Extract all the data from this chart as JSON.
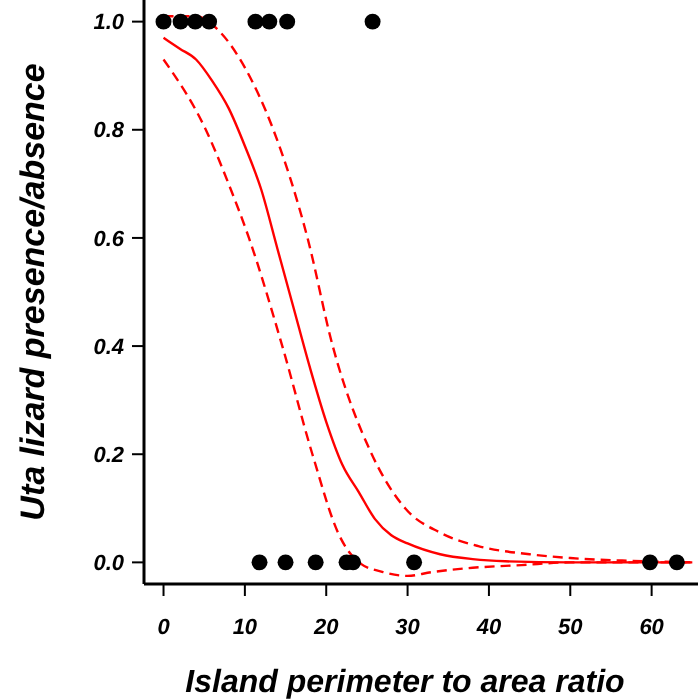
{
  "chart_data": {
    "type": "scatter",
    "xlabel": "Island perimeter to area ratio",
    "ylabel": "Uta lizard presence/absence",
    "xlim": [
      -2.4,
      65.7
    ],
    "ylim": [
      -0.04,
      1.04
    ],
    "xticks": [
      0,
      10,
      20,
      30,
      40,
      50,
      60
    ],
    "yticks": [
      {
        "value": 0,
        "label": "0.0"
      },
      {
        "value": 0.2,
        "label": "0.2"
      },
      {
        "value": 0.4,
        "label": "0.4"
      },
      {
        "value": 0.6,
        "label": "0.6"
      },
      {
        "value": 0.8,
        "label": "0.8"
      },
      {
        "value": 1,
        "label": "1.0"
      }
    ],
    "series": [
      {
        "type": "line",
        "color": "#ff0000",
        "line_style": "dashed",
        "x": [
          0,
          4,
          7,
          10,
          13.5,
          17.7,
          20.8,
          25.6,
          29.7,
          34,
          38.7,
          45,
          50,
          57,
          65
        ],
        "values": [
          1.01,
          1.01,
          0.98,
          0.915,
          0.8,
          0.6,
          0.4,
          0.2,
          0.1,
          0.055,
          0.03,
          0.015,
          0.008,
          0.003,
          0
        ]
      },
      {
        "type": "line",
        "color": "#ff0000",
        "line_style": "dashed",
        "x": [
          0,
          5.2,
          8,
          10.5,
          14.6,
          18.3,
          21.6,
          24,
          27,
          30,
          33,
          38,
          44,
          50,
          65
        ],
        "values": [
          0.93,
          0.8,
          0.7,
          0.6,
          0.4,
          0.2,
          0.05,
          0,
          -0.018,
          -0.025,
          -0.018,
          -0.01,
          -0.005,
          0,
          0
        ]
      },
      {
        "type": "line",
        "color": "#ff0000",
        "line_style": "solid",
        "x": [
          0,
          2,
          4,
          6,
          8,
          10,
          12,
          14,
          16,
          18,
          20,
          22,
          24,
          26,
          28,
          30,
          34,
          38,
          42,
          50,
          65
        ],
        "values": [
          0.97,
          0.95,
          0.93,
          0.89,
          0.84,
          0.77,
          0.69,
          0.58,
          0.47,
          0.36,
          0.26,
          0.18,
          0.13,
          0.08,
          0.05,
          0.035,
          0.015,
          0.006,
          0.002,
          0,
          0
        ]
      },
      {
        "color": "#000000",
        "marker": "circle",
        "x": [
          0,
          2.1,
          3.9,
          5.6,
          11.3,
          13,
          15.2,
          25.7,
          11.8,
          15,
          18.7,
          22.5,
          23.3,
          30.8,
          59.8,
          63.1
        ],
        "values": [
          1,
          1,
          1,
          1,
          1,
          1,
          1,
          1,
          0,
          0,
          0,
          0,
          0,
          0,
          0,
          0
        ]
      }
    ]
  }
}
